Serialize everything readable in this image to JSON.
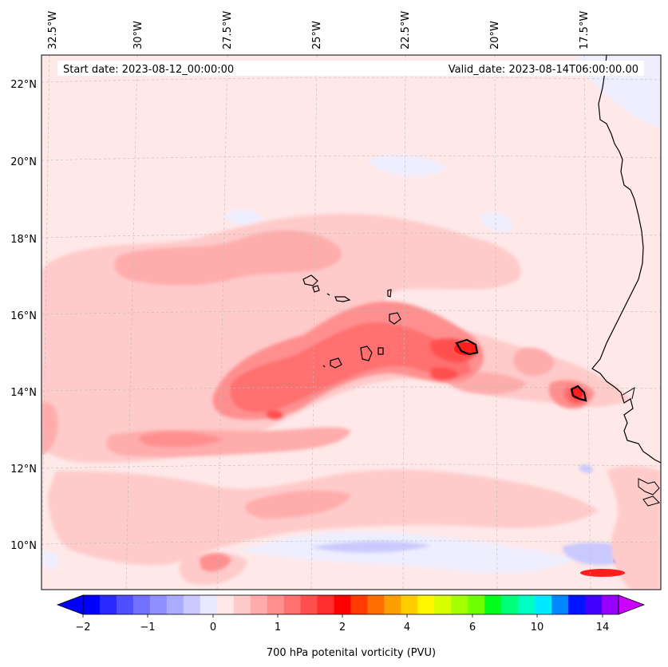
{
  "header": {
    "start_date": "Start date: 2023-08-12_00:00:00",
    "valid_date": "Valid_date: 2023-08-14T06:00:00.00"
  },
  "lon_labels": [
    "32.5°W",
    "30°W",
    "27.5°W",
    "25°W",
    "22.5°W",
    "20°W",
    "17.5°W"
  ],
  "lat_labels": [
    "22°N",
    "20°N",
    "18°N",
    "16°N",
    "14°N",
    "12°N",
    "10°N"
  ],
  "colorbar": {
    "label": "700 hPa potenital vorticity (PVU)",
    "tick_labels": [
      "−2",
      "−1",
      "0",
      "1",
      "2",
      "4",
      "6",
      "10",
      "14"
    ],
    "colors": [
      "#0000ff",
      "#2a2aff",
      "#4f4fff",
      "#7171ff",
      "#8f8fff",
      "#ababff",
      "#c9c9ff",
      "#e9e9ff",
      "#ffe7e7",
      "#ffcaca",
      "#ffacac",
      "#ff8f8f",
      "#ff7070",
      "#ff4f4f",
      "#ff2e2e",
      "#ff0000",
      "#ff3b00",
      "#ff6e00",
      "#ff9e00",
      "#ffcd00",
      "#fff700",
      "#d7ff00",
      "#a4ff00",
      "#6eff00",
      "#00ff1c",
      "#00ff7a",
      "#00ffc2",
      "#00e9ff",
      "#0087ff",
      "#0015ff",
      "#4400ff",
      "#9700ff"
    ],
    "under_color": "#0000ff",
    "over_color": "#cc00ff"
  },
  "map": {
    "ocean_color": "#ffe8e8",
    "coast_color": "#000000",
    "grid_color": "#bbbbbb"
  }
}
